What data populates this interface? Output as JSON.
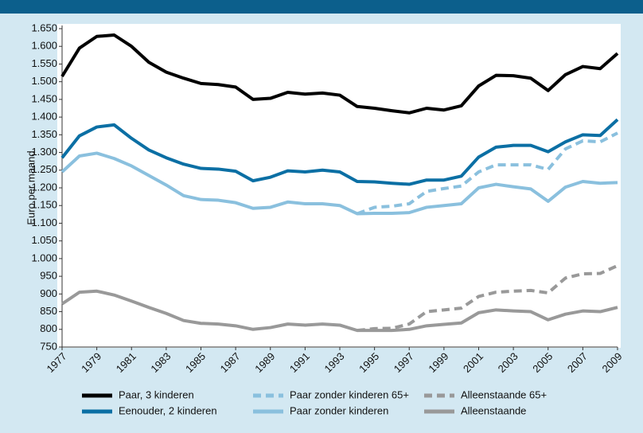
{
  "chart_data": {
    "type": "line",
    "y_label": "Euro per maand",
    "x": [
      1977,
      1978,
      1979,
      1980,
      1981,
      1982,
      1983,
      1984,
      1985,
      1986,
      1987,
      1988,
      1989,
      1990,
      1991,
      1992,
      1993,
      1994,
      1995,
      1996,
      1997,
      1998,
      1999,
      2000,
      2001,
      2002,
      2003,
      2004,
      2005,
      2006,
      2007,
      2008,
      2009
    ],
    "xlim": [
      1977,
      2009
    ],
    "xticks": [
      1977,
      1979,
      1981,
      1983,
      1985,
      1987,
      1989,
      1991,
      1993,
      1995,
      1997,
      1999,
      2001,
      2003,
      2005,
      2007,
      2009
    ],
    "ylim": [
      750,
      1650
    ],
    "yticks": [
      750,
      800,
      850,
      900,
      950,
      {
        "value": 1000,
        "label": "1.000"
      },
      {
        "value": 1050,
        "label": "1.050"
      },
      {
        "value": 1100,
        "label": "1.100"
      },
      {
        "value": 1150,
        "label": "1.150"
      },
      {
        "value": 1200,
        "label": "1.200"
      },
      {
        "value": 1250,
        "label": "1.250"
      },
      {
        "value": 1300,
        "label": "1.300"
      },
      {
        "value": 1350,
        "label": "1.350"
      },
      {
        "value": 1400,
        "label": "1.400"
      },
      {
        "value": 1450,
        "label": "1.450"
      },
      {
        "value": 1500,
        "label": "1.500"
      },
      {
        "value": 1550,
        "label": "1.550"
      },
      {
        "value": 1600,
        "label": "1.600"
      },
      {
        "value": 1650,
        "label": "1.650"
      }
    ],
    "series": [
      {
        "name": "Paar, 3 kinderen",
        "color": "#000000",
        "dashed": false,
        "values": [
          1515,
          1595,
          1628,
          1632,
          1600,
          1555,
          1527,
          1510,
          1495,
          1492,
          1485,
          1450,
          1453,
          1470,
          1465,
          1468,
          1462,
          1430,
          1425,
          1418,
          1412,
          1425,
          1420,
          1432,
          1488,
          1518,
          1517,
          1510,
          1475,
          1520,
          1543,
          1537,
          1580
        ]
      },
      {
        "name": "Eenouder, 2 kinderen",
        "color": "#0b6fa4",
        "dashed": false,
        "values": [
          1285,
          1347,
          1372,
          1378,
          1340,
          1307,
          1285,
          1267,
          1255,
          1253,
          1247,
          1220,
          1230,
          1248,
          1245,
          1250,
          1245,
          1218,
          1217,
          1213,
          1210,
          1222,
          1222,
          1233,
          1287,
          1315,
          1320,
          1320,
          1302,
          1330,
          1350,
          1348,
          1393
        ]
      },
      {
        "name": "Paar zonder kinderen 65+",
        "color": "#8ac0de",
        "dashed": true,
        "values": [
          null,
          null,
          null,
          null,
          null,
          null,
          null,
          null,
          null,
          null,
          null,
          null,
          null,
          null,
          null,
          null,
          null,
          1127,
          1145,
          1148,
          1155,
          1190,
          1198,
          1205,
          1245,
          1265,
          1265,
          1265,
          1252,
          1310,
          1333,
          1330,
          1355
        ]
      },
      {
        "name": "Paar zonder kinderen",
        "color": "#8ac0de",
        "dashed": false,
        "values": [
          1245,
          1290,
          1298,
          1283,
          1262,
          1235,
          1208,
          1178,
          1167,
          1165,
          1158,
          1142,
          1145,
          1160,
          1155,
          1155,
          1150,
          1127,
          1128,
          1128,
          1130,
          1145,
          1150,
          1155,
          1200,
          1210,
          1203,
          1197,
          1162,
          1202,
          1218,
          1213,
          1215
        ]
      },
      {
        "name": "Alleenstaande 65+",
        "color": "#999999",
        "dashed": true,
        "values": [
          null,
          null,
          null,
          null,
          null,
          null,
          null,
          null,
          null,
          null,
          null,
          null,
          null,
          null,
          null,
          null,
          null,
          797,
          802,
          803,
          815,
          850,
          855,
          860,
          893,
          905,
          908,
          910,
          903,
          945,
          957,
          958,
          980
        ]
      },
      {
        "name": "Alleenstaande",
        "color": "#999999",
        "dashed": false,
        "values": [
          872,
          905,
          908,
          897,
          880,
          862,
          845,
          825,
          817,
          815,
          810,
          800,
          805,
          815,
          812,
          815,
          812,
          797,
          797,
          797,
          800,
          810,
          814,
          818,
          847,
          855,
          852,
          850,
          827,
          843,
          852,
          850,
          862
        ]
      }
    ]
  }
}
